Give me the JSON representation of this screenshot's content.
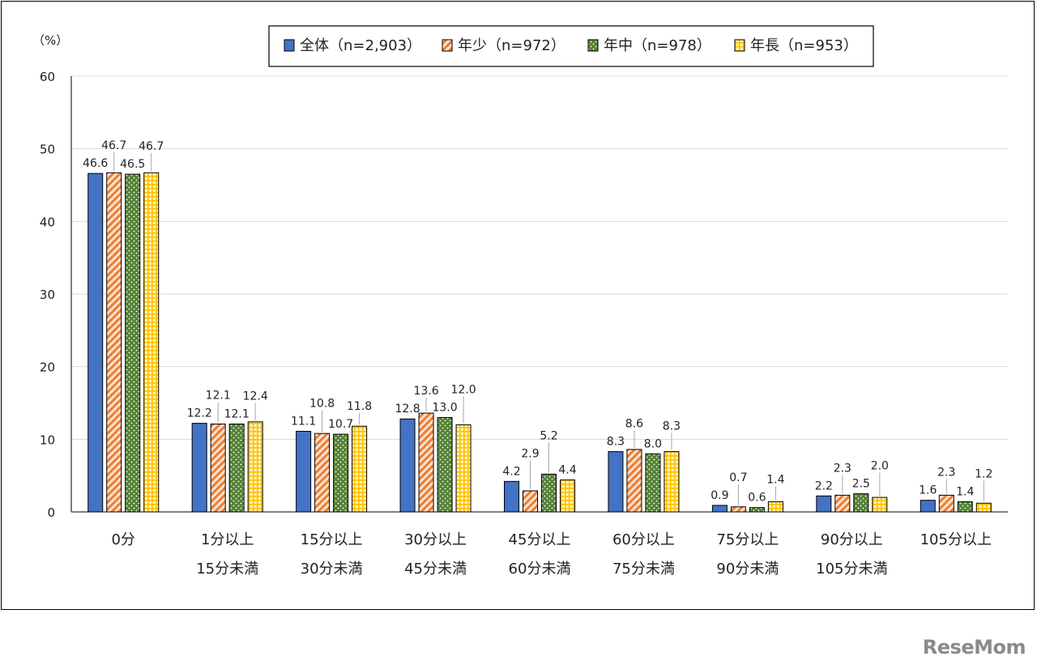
{
  "chart_data": {
    "type": "bar",
    "yunit": "（%）",
    "ylim": [
      0,
      60
    ],
    "yticks": [
      0,
      10,
      20,
      30,
      40,
      50,
      60
    ],
    "grid": true,
    "legend_position": "top",
    "categories": [
      [
        "0分"
      ],
      [
        "1分以上",
        "15分未満"
      ],
      [
        "15分以上",
        "30分未満"
      ],
      [
        "30分以上",
        "45分未満"
      ],
      [
        "45分以上",
        "60分未満"
      ],
      [
        "60分以上",
        "75分未満"
      ],
      [
        "75分以上",
        "90分未満"
      ],
      [
        "90分以上",
        "105分未満"
      ],
      [
        "105分以上"
      ]
    ],
    "series": [
      {
        "name": "全体（n=2,903）",
        "color": "#4472c4",
        "pattern": "solid",
        "values": [
          46.6,
          12.2,
          11.1,
          12.8,
          4.2,
          8.3,
          0.9,
          2.2,
          1.6
        ]
      },
      {
        "name": "年少（n=972）",
        "color": "#ed7d31",
        "pattern": "diagonal",
        "values": [
          46.7,
          12.1,
          10.8,
          13.6,
          2.9,
          8.6,
          0.7,
          2.3,
          2.3
        ]
      },
      {
        "name": "年中（n=978）",
        "color": "#548235",
        "pattern": "dots",
        "values": [
          46.5,
          12.1,
          10.7,
          13.0,
          5.2,
          8.0,
          0.6,
          2.5,
          1.4
        ]
      },
      {
        "name": "年長（n=953）",
        "color": "#ffc000",
        "pattern": "grid",
        "values": [
          46.7,
          12.4,
          11.8,
          12.0,
          4.4,
          8.3,
          1.4,
          2.0,
          1.2
        ]
      }
    ]
  },
  "watermark": "ReseMom"
}
